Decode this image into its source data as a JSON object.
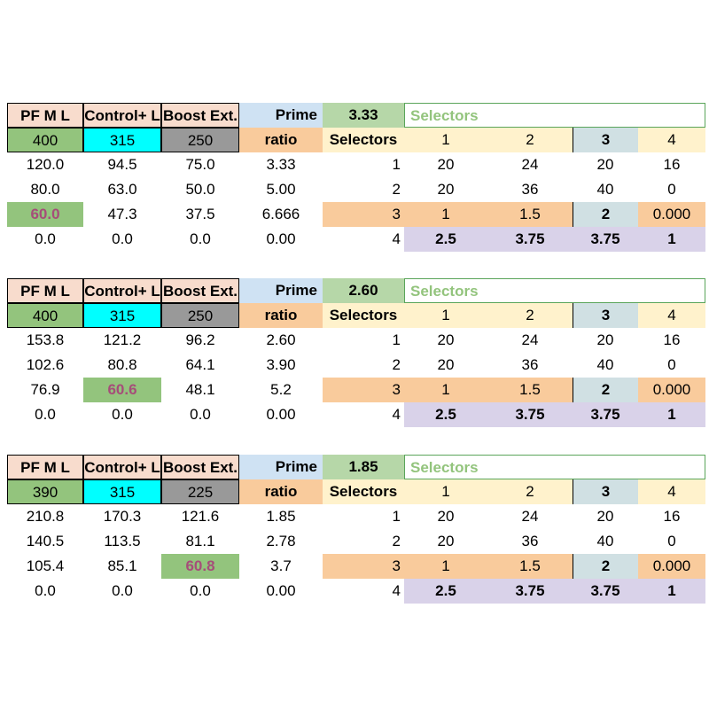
{
  "blocks": [
    {
      "headers": {
        "pfml": "PF M L",
        "control": "Control+ L",
        "boost": "Boost Ext.",
        "prime": "Prime",
        "prime_value": "3.33",
        "selectors_title": "Selectors"
      },
      "inputs": {
        "pfml": "400",
        "control": "315",
        "boost": "250",
        "ratio": "ratio",
        "selectors": "Selectors",
        "s1": "1",
        "s2": "2",
        "s3": "3",
        "s4": "4"
      },
      "rows": [
        {
          "a": "120.0",
          "b": "94.5",
          "c": "75.0",
          "d": "3.33",
          "n": "1",
          "s1": "20",
          "s2": "24",
          "s3": "20",
          "s4": "16"
        },
        {
          "a": "80.0",
          "b": "63.0",
          "c": "50.0",
          "d": "5.00",
          "n": "2",
          "s1": "20",
          "s2": "36",
          "s3": "40",
          "s4": "0"
        },
        {
          "a": "60.0",
          "b": "47.3",
          "c": "37.5",
          "d": "6.666",
          "n": "3",
          "s1": "1",
          "s2": "1.5",
          "s3": "2",
          "s4": "0.000"
        },
        {
          "a": "0.0",
          "b": "0.0",
          "c": "0.0",
          "d": "0.00",
          "n": "4",
          "s1": "2.5",
          "s2": "3.75",
          "s3": "3.75",
          "s4": "1"
        }
      ]
    },
    {
      "headers": {
        "pfml": "PF M L",
        "control": "Control+ L",
        "boost": "Boost Ext.",
        "prime": "Prime",
        "prime_value": "2.60",
        "selectors_title": "Selectors"
      },
      "inputs": {
        "pfml": "400",
        "control": "315",
        "boost": "250",
        "ratio": "ratio",
        "selectors": "Selectors",
        "s1": "1",
        "s2": "2",
        "s3": "3",
        "s4": "4"
      },
      "rows": [
        {
          "a": "153.8",
          "b": "121.2",
          "c": "96.2",
          "d": "2.60",
          "n": "1",
          "s1": "20",
          "s2": "24",
          "s3": "20",
          "s4": "16"
        },
        {
          "a": "102.6",
          "b": "80.8",
          "c": "64.1",
          "d": "3.90",
          "n": "2",
          "s1": "20",
          "s2": "36",
          "s3": "40",
          "s4": "0"
        },
        {
          "a": "76.9",
          "b": "60.6",
          "c": "48.1",
          "d": "5.2",
          "n": "3",
          "s1": "1",
          "s2": "1.5",
          "s3": "2",
          "s4": "0.000"
        },
        {
          "a": "0.0",
          "b": "0.0",
          "c": "0.0",
          "d": "0.00",
          "n": "4",
          "s1": "2.5",
          "s2": "3.75",
          "s3": "3.75",
          "s4": "1"
        }
      ]
    },
    {
      "headers": {
        "pfml": "PF M L",
        "control": "Control+ L",
        "boost": "Boost Ext.",
        "prime": "Prime",
        "prime_value": "1.85",
        "selectors_title": "Selectors"
      },
      "inputs": {
        "pfml": "390",
        "control": "315",
        "boost": "225",
        "ratio": "ratio",
        "selectors": "Selectors",
        "s1": "1",
        "s2": "2",
        "s3": "3",
        "s4": "4"
      },
      "rows": [
        {
          "a": "210.8",
          "b": "170.3",
          "c": "121.6",
          "d": "1.85",
          "n": "1",
          "s1": "20",
          "s2": "24",
          "s3": "20",
          "s4": "16"
        },
        {
          "a": "140.5",
          "b": "113.5",
          "c": "81.1",
          "d": "2.78",
          "n": "2",
          "s1": "20",
          "s2": "36",
          "s3": "40",
          "s4": "0"
        },
        {
          "a": "105.4",
          "b": "85.1",
          "c": "60.8",
          "d": "3.7",
          "n": "3",
          "s1": "1",
          "s2": "1.5",
          "s3": "2",
          "s4": "0.000"
        },
        {
          "a": "0.0",
          "b": "0.0",
          "c": "0.0",
          "d": "0.00",
          "n": "4",
          "s1": "2.5",
          "s2": "3.75",
          "s3": "3.75",
          "s4": "1"
        }
      ]
    }
  ]
}
